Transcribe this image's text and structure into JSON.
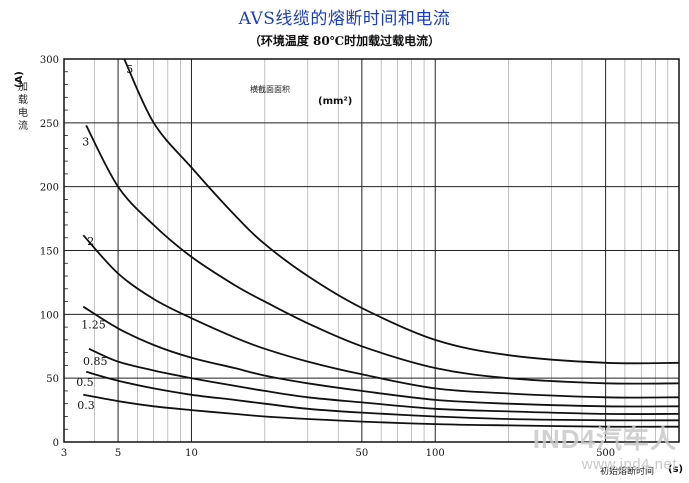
{
  "chart_data": {
    "type": "line",
    "title": "AVS线缆的熔断时间和电流",
    "subtitle": "（环境温度 80℃时加载过载电流）",
    "ylabel_unit": "(A)",
    "ylabel_text": "加载电流",
    "xlabel_unit": "(s)",
    "xlabel_text": "初始熔断时间",
    "legend_title": "横截面面积",
    "legend_unit": "(mm²)",
    "x_scale": "log",
    "xlim": [
      3,
      1000
    ],
    "ylim": [
      0,
      300
    ],
    "x_major_ticks": [
      5,
      10,
      50,
      100,
      500
    ],
    "x_tick_labels": [
      "3",
      "5",
      "10",
      "50",
      "100",
      "500"
    ],
    "x_tick_values": [
      3,
      5,
      10,
      50,
      100,
      500
    ],
    "y_ticks": [
      0,
      50,
      100,
      150,
      200,
      250,
      300
    ],
    "y_tick_labels": [
      "0",
      "50",
      "100",
      "150",
      "200",
      "250",
      "300"
    ],
    "grid": true,
    "series": [
      {
        "name": "5",
        "x": [
          5.3,
          7,
          10,
          15,
          20,
          30,
          50,
          100,
          200,
          500,
          1000
        ],
        "y": [
          300,
          250,
          215,
          178,
          155,
          130,
          105,
          80,
          68,
          62,
          62
        ]
      },
      {
        "name": "3",
        "x": [
          3.7,
          5,
          7,
          10,
          15,
          20,
          30,
          50,
          100,
          200,
          500,
          1000
        ],
        "y": [
          248,
          200,
          170,
          145,
          123,
          110,
          93,
          75,
          58,
          50,
          46,
          46
        ]
      },
      {
        "name": "2",
        "x": [
          3.6,
          5,
          7,
          10,
          15,
          20,
          30,
          50,
          100,
          200,
          500,
          1000
        ],
        "y": [
          162,
          132,
          112,
          97,
          82,
          73,
          63,
          53,
          42,
          38,
          35,
          35
        ]
      },
      {
        "name": "1.25",
        "x": [
          3.6,
          5,
          7,
          10,
          15,
          20,
          30,
          50,
          100,
          200,
          500,
          1000
        ],
        "y": [
          106,
          89,
          76,
          66,
          58,
          52,
          46,
          40,
          33,
          30,
          28,
          28
        ]
      },
      {
        "name": "0.85",
        "x": [
          3.8,
          5,
          7,
          10,
          15,
          20,
          30,
          50,
          100,
          200,
          500,
          1000
        ],
        "y": [
          73,
          63,
          56,
          50,
          44,
          40,
          35,
          31,
          26,
          24,
          22,
          22
        ]
      },
      {
        "name": "0.5",
        "x": [
          3.7,
          5,
          7,
          10,
          15,
          20,
          30,
          50,
          100,
          200,
          500,
          1000
        ],
        "y": [
          55,
          48,
          42,
          37,
          33,
          30,
          26,
          23,
          20,
          18,
          17,
          17
        ]
      },
      {
        "name": "0.3",
        "x": [
          3.6,
          5,
          7,
          10,
          15,
          20,
          30,
          50,
          100,
          200,
          500,
          1000
        ],
        "y": [
          37,
          32,
          28,
          25,
          22,
          20,
          18,
          16,
          14,
          13,
          12,
          12
        ]
      }
    ]
  },
  "watermark": {
    "brand": "IND4汽车人",
    "url": "www.ind4.net"
  }
}
